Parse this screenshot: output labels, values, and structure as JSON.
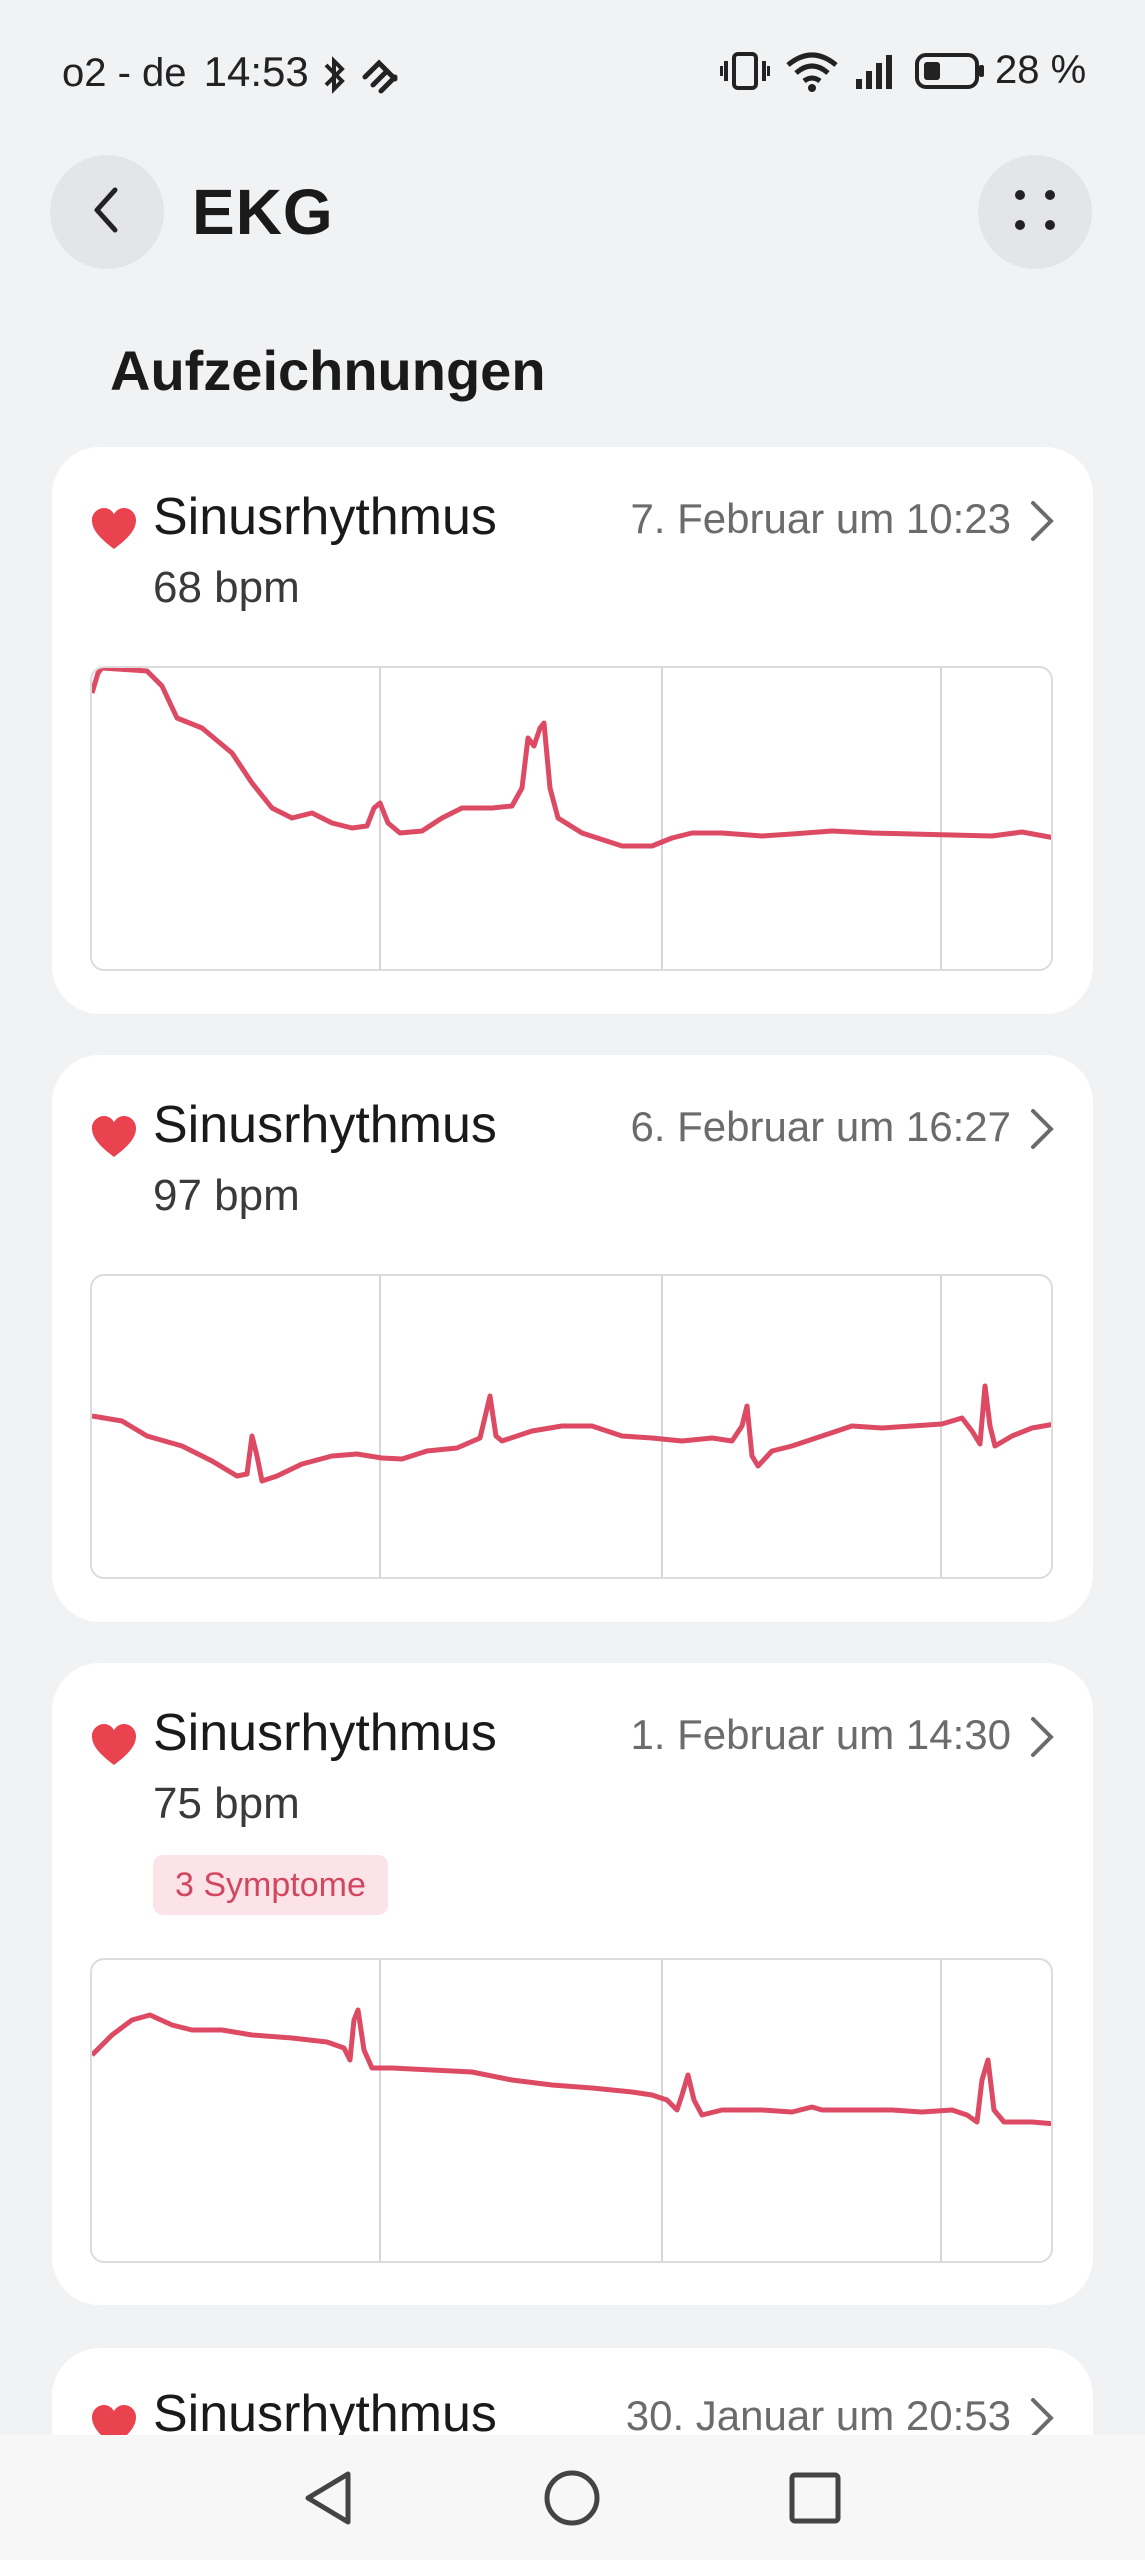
{
  "status_bar": {
    "carrier": "o2 - de",
    "time": "14:53",
    "battery_pct": "28 %"
  },
  "header": {
    "title": "EKG"
  },
  "section": {
    "title": "Aufzeichnungen"
  },
  "colors": {
    "accent_red": "#e8434f",
    "ecg_line": "#dc4a64",
    "badge_bg": "#fbe3e7"
  },
  "recordings": [
    {
      "name": "Sinusrhythmus",
      "date": "7. Februar um 10:23",
      "bpm": "68 bpm",
      "symptoms": null
    },
    {
      "name": "Sinusrhythmus",
      "date": "6. Februar um 16:27",
      "bpm": "97 bpm",
      "symptoms": null
    },
    {
      "name": "Sinusrhythmus",
      "date": "1. Februar um 14:30",
      "bpm": "75 bpm",
      "symptoms": "3 Symptome"
    },
    {
      "name": "Sinusrhythmus",
      "date": "30. Januar um 20:53",
      "bpm": "",
      "symptoms": null
    }
  ]
}
